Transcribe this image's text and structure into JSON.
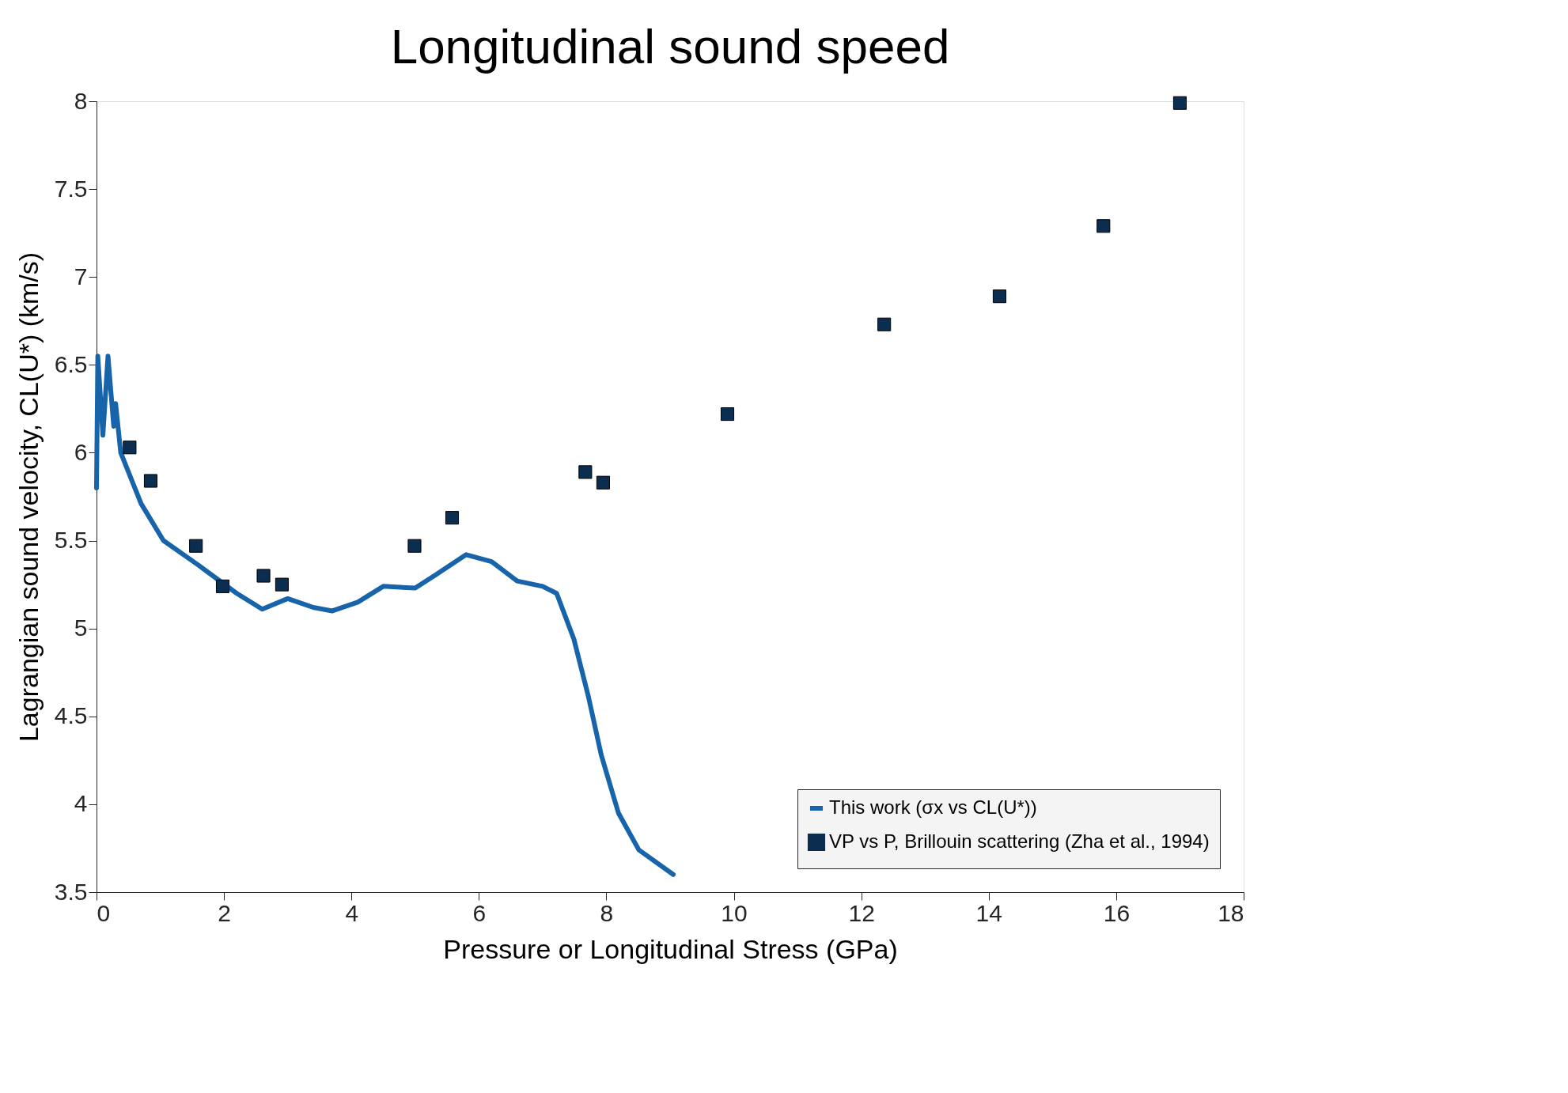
{
  "chart_data": {
    "type": "line",
    "title": "Longitudinal sound speed",
    "xlabel": "Pressure or Longitudinal Stress (GPa)",
    "ylabel": "Lagrangian sound velocity, CL(U*) (km/s)",
    "xlim": [
      0,
      18
    ],
    "xticks": [
      0,
      2,
      4,
      6,
      8,
      10,
      12,
      14,
      16,
      18
    ],
    "ylim": [
      3.5,
      8
    ],
    "yticks": [
      3.5,
      4,
      4.5,
      5,
      5.5,
      6,
      6.5,
      7,
      7.5,
      8
    ],
    "grid": false,
    "legend": "bottom right",
    "series": [
      {
        "name": "This work (σx vs CL(U*))",
        "type": "line",
        "color": "#1764ab",
        "marker": "none",
        "line_style": "solid",
        "x": [
          0,
          0.02,
          0.1,
          0.18,
          0.27,
          0.3,
          0.38,
          0.7,
          1.05,
          1.6,
          2.2,
          2.6,
          3.0,
          3.4,
          3.7,
          4.1,
          4.5,
          5.0,
          5.3,
          5.8,
          6.2,
          6.6,
          7.0,
          7.22,
          7.49,
          7.72,
          7.92,
          8.19,
          8.51,
          9.05
        ],
        "values": [
          5.8,
          6.55,
          6.1,
          6.55,
          6.15,
          6.28,
          6.0,
          5.71,
          5.5,
          5.36,
          5.2,
          5.11,
          5.17,
          5.12,
          5.1,
          5.15,
          5.24,
          5.23,
          5.3,
          5.42,
          5.38,
          5.27,
          5.24,
          5.2,
          4.94,
          4.61,
          4.28,
          3.95,
          3.74,
          3.6
        ]
      },
      {
        "name": "VP vs P, Brillouin scattering (Zha et al., 1994)",
        "type": "scatter",
        "color": "#0b2d4f",
        "marker": "square",
        "x": [
          0.52,
          0.85,
          1.56,
          1.98,
          2.62,
          2.91,
          4.99,
          5.58,
          7.67,
          7.95,
          9.9,
          12.36,
          14.17,
          15.8,
          17.0
        ],
        "values": [
          6.03,
          5.84,
          5.47,
          5.24,
          5.3,
          5.25,
          5.47,
          5.63,
          5.89,
          5.83,
          6.22,
          6.73,
          6.89,
          7.29,
          7.99
        ]
      }
    ]
  }
}
